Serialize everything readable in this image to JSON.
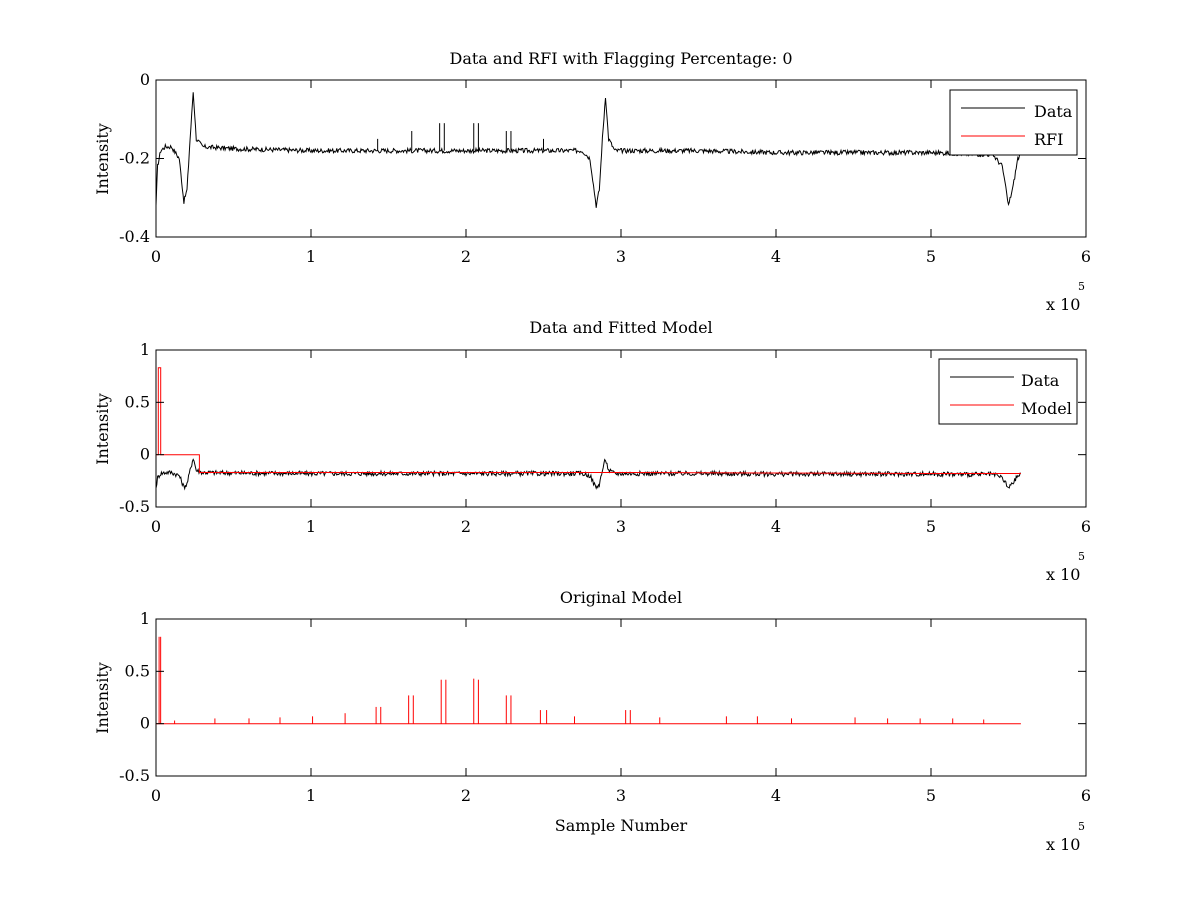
{
  "chart_data": [
    {
      "type": "line",
      "title": "Data and RFI with Flagging Percentage: 0",
      "xlabel": "",
      "ylabel": "Intensity",
      "xlim": [
        0,
        6
      ],
      "ylim": [
        -0.4,
        0
      ],
      "x_ticks": [
        "0",
        "1",
        "2",
        "3",
        "4",
        "5",
        "6"
      ],
      "y_ticks": [
        "-0.4",
        "-0.2",
        "0"
      ],
      "x_multiplier": "x 10",
      "x_multiplier_exp": "5",
      "legend": {
        "placement": "top-right",
        "entries": [
          "Data",
          "RFI"
        ]
      },
      "series": [
        {
          "name": "Data",
          "color": "#000000",
          "x": [
            0,
            0.01,
            0.03,
            0.06,
            0.1,
            0.15,
            0.18,
            0.2,
            0.22,
            0.24,
            0.26,
            0.3,
            0.5,
            1,
            1.5,
            2,
            2.5,
            2.75,
            2.8,
            2.84,
            2.86,
            2.88,
            2.9,
            2.92,
            2.96,
            3.5,
            4,
            4.5,
            5,
            5.4,
            5.46,
            5.5,
            5.53,
            5.56,
            5.58
          ],
          "y": [
            -0.32,
            -0.22,
            -0.18,
            -0.17,
            -0.17,
            -0.2,
            -0.31,
            -0.28,
            -0.15,
            -0.03,
            -0.15,
            -0.17,
            -0.175,
            -0.18,
            -0.18,
            -0.18,
            -0.18,
            -0.18,
            -0.2,
            -0.32,
            -0.28,
            -0.15,
            -0.04,
            -0.15,
            -0.18,
            -0.18,
            -0.185,
            -0.185,
            -0.185,
            -0.19,
            -0.22,
            -0.32,
            -0.27,
            -0.2,
            -0.19
          ]
        }
      ],
      "spikes": [
        {
          "x": 1.43,
          "y": -0.15
        },
        {
          "x": 1.65,
          "y": -0.13
        },
        {
          "x": 1.83,
          "y": -0.11
        },
        {
          "x": 1.86,
          "y": -0.11
        },
        {
          "x": 2.05,
          "y": -0.11
        },
        {
          "x": 2.08,
          "y": -0.11
        },
        {
          "x": 2.26,
          "y": -0.13
        },
        {
          "x": 2.29,
          "y": -0.13
        },
        {
          "x": 2.5,
          "y": -0.15
        }
      ]
    },
    {
      "type": "line",
      "title": "Data and Fitted Model",
      "xlabel": "",
      "ylabel": "Intensity",
      "xlim": [
        0,
        6
      ],
      "ylim": [
        -0.5,
        1
      ],
      "x_ticks": [
        "0",
        "1",
        "2",
        "3",
        "4",
        "5",
        "6"
      ],
      "y_ticks": [
        "-0.5",
        "0",
        "0.5",
        "1"
      ],
      "x_multiplier": "x 10",
      "x_multiplier_exp": "5",
      "legend": {
        "placement": "top-right",
        "entries": [
          "Data",
          "Model"
        ]
      },
      "series": [
        {
          "name": "Data",
          "color": "#000000",
          "x": [
            0,
            0.01,
            0.03,
            0.06,
            0.1,
            0.15,
            0.18,
            0.2,
            0.22,
            0.24,
            0.26,
            0.3,
            0.5,
            1,
            1.5,
            2,
            2.5,
            2.75,
            2.8,
            2.84,
            2.86,
            2.88,
            2.9,
            2.92,
            2.96,
            3.5,
            4,
            4.5,
            5,
            5.4,
            5.46,
            5.5,
            5.53,
            5.56,
            5.58
          ],
          "y": [
            -0.32,
            -0.22,
            -0.18,
            -0.17,
            -0.17,
            -0.2,
            -0.31,
            -0.28,
            -0.15,
            -0.03,
            -0.15,
            -0.17,
            -0.175,
            -0.18,
            -0.18,
            -0.18,
            -0.18,
            -0.18,
            -0.2,
            -0.32,
            -0.28,
            -0.15,
            -0.04,
            -0.15,
            -0.18,
            -0.18,
            -0.185,
            -0.185,
            -0.185,
            -0.19,
            -0.22,
            -0.32,
            -0.27,
            -0.2,
            -0.19
          ]
        },
        {
          "name": "Model",
          "color": "#ff0000",
          "x": [
            0,
            0.015,
            0.015,
            0.03,
            0.03,
            0.27,
            0.28,
            0.28,
            1,
            2,
            3,
            4,
            5,
            5.58
          ],
          "y": [
            0,
            0,
            0.83,
            0.83,
            0,
            0,
            0,
            -0.17,
            -0.17,
            -0.17,
            -0.17,
            -0.175,
            -0.18,
            -0.18
          ]
        }
      ]
    },
    {
      "type": "line",
      "title": "Original Model",
      "xlabel": "Sample Number",
      "ylabel": "Intensity",
      "xlim": [
        0,
        6
      ],
      "ylim": [
        -0.5,
        1
      ],
      "x_ticks": [
        "0",
        "1",
        "2",
        "3",
        "4",
        "5",
        "6"
      ],
      "y_ticks": [
        "-0.5",
        "0",
        "0.5",
        "1"
      ],
      "x_multiplier": "x 10",
      "x_multiplier_exp": "5",
      "series": [
        {
          "name": "",
          "color": "#ff0000",
          "x": [
            0,
            5.58
          ],
          "y": [
            0,
            0
          ]
        }
      ],
      "spikes": [
        {
          "x": 0.02,
          "y": 0.83
        },
        {
          "x": 0.03,
          "y": 0.83
        },
        {
          "x": 0.12,
          "y": 0.03
        },
        {
          "x": 0.38,
          "y": 0.05
        },
        {
          "x": 0.6,
          "y": 0.05
        },
        {
          "x": 0.8,
          "y": 0.06
        },
        {
          "x": 1.01,
          "y": 0.07
        },
        {
          "x": 1.22,
          "y": 0.1
        },
        {
          "x": 1.42,
          "y": 0.16
        },
        {
          "x": 1.45,
          "y": 0.16
        },
        {
          "x": 1.63,
          "y": 0.27
        },
        {
          "x": 1.66,
          "y": 0.27
        },
        {
          "x": 1.84,
          "y": 0.42
        },
        {
          "x": 1.87,
          "y": 0.42
        },
        {
          "x": 2.05,
          "y": 0.43
        },
        {
          "x": 2.08,
          "y": 0.42
        },
        {
          "x": 2.26,
          "y": 0.27
        },
        {
          "x": 2.29,
          "y": 0.27
        },
        {
          "x": 2.48,
          "y": 0.13
        },
        {
          "x": 2.52,
          "y": 0.13
        },
        {
          "x": 2.7,
          "y": 0.07
        },
        {
          "x": 3.03,
          "y": 0.13
        },
        {
          "x": 3.06,
          "y": 0.13
        },
        {
          "x": 3.25,
          "y": 0.06
        },
        {
          "x": 3.68,
          "y": 0.07
        },
        {
          "x": 3.88,
          "y": 0.07
        },
        {
          "x": 4.1,
          "y": 0.05
        },
        {
          "x": 4.51,
          "y": 0.06
        },
        {
          "x": 4.72,
          "y": 0.05
        },
        {
          "x": 4.93,
          "y": 0.05
        },
        {
          "x": 5.14,
          "y": 0.05
        },
        {
          "x": 5.34,
          "y": 0.04
        }
      ]
    }
  ]
}
